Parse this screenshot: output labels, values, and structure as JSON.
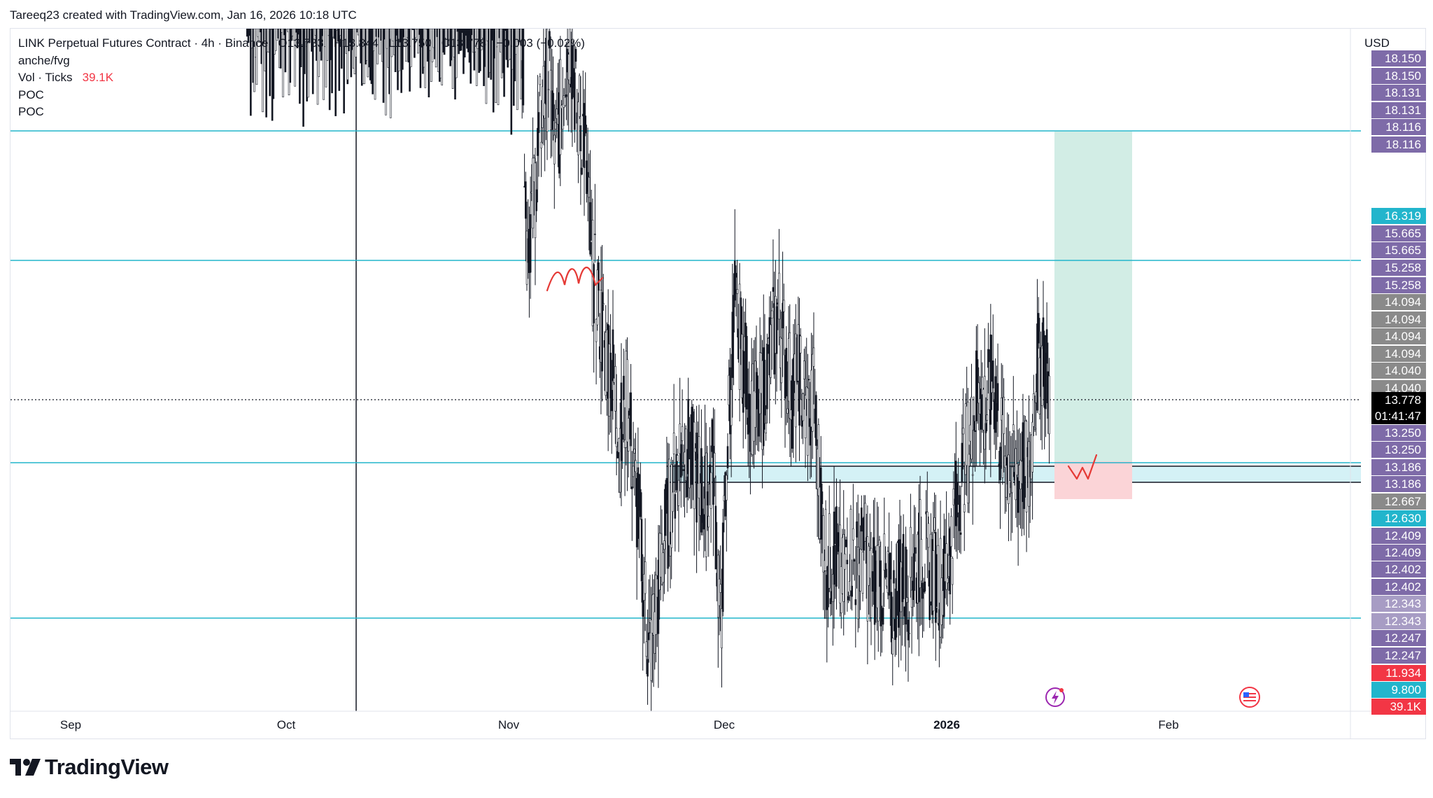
{
  "watermark": "Tareeq23 created with TradingView.com, Jan 16, 2026 10:18 UTC",
  "legend": {
    "symbol": "LINK Perpetual Futures Contract · 4h · Binance",
    "open": "O13.783",
    "high": "H13.844",
    "low": "L13.750",
    "close": "C13.778",
    "change": "−0.003 (−0.02%)",
    "indicator_1": "anche/fvg",
    "volume_label": "Vol · Ticks",
    "volume_value": "39.1K",
    "poc_1": "POC",
    "poc_2": "POC"
  },
  "axis": {
    "currency": "USD"
  },
  "countdown": {
    "price": "13.778",
    "time": "01:41:47"
  },
  "price_labels": [
    {
      "text": "18.150",
      "value": 18.15,
      "color": "#7e6ba8"
    },
    {
      "text": "18.150",
      "value": 18.15,
      "color": "#7e6ba8"
    },
    {
      "text": "18.131",
      "value": 18.131,
      "color": "#7e6ba8"
    },
    {
      "text": "18.131",
      "value": 18.131,
      "color": "#7e6ba8"
    },
    {
      "text": "18.116",
      "value": 18.116,
      "color": "#7e6ba8"
    },
    {
      "text": "18.116",
      "value": 18.116,
      "color": "#7e6ba8"
    },
    {
      "text": "16.319",
      "value": 16.319,
      "color": "#22b5cc"
    },
    {
      "text": "15.665",
      "value": 15.665,
      "color": "#7e6ba8"
    },
    {
      "text": "15.665",
      "value": 15.665,
      "color": "#7e6ba8"
    },
    {
      "text": "15.258",
      "value": 15.258,
      "color": "#7e6ba8"
    },
    {
      "text": "15.258",
      "value": 15.258,
      "color": "#7e6ba8"
    },
    {
      "text": "14.094",
      "value": 14.094,
      "color": "#8a8a8a"
    },
    {
      "text": "14.094",
      "value": 14.094,
      "color": "#8a8a8a"
    },
    {
      "text": "14.094",
      "value": 14.094,
      "color": "#8a8a8a"
    },
    {
      "text": "14.094",
      "value": 14.094,
      "color": "#8a8a8a"
    },
    {
      "text": "14.040",
      "value": 14.04,
      "color": "#8a8a8a"
    },
    {
      "text": "14.040",
      "value": 14.04,
      "color": "#8a8a8a"
    },
    {
      "text": "13.250",
      "value": 13.25,
      "color": "#7e6ba8"
    },
    {
      "text": "13.250",
      "value": 13.25,
      "color": "#7e6ba8"
    },
    {
      "text": "13.186",
      "value": 13.186,
      "color": "#7e6ba8"
    },
    {
      "text": "13.186",
      "value": 13.186,
      "color": "#7e6ba8"
    },
    {
      "text": "12.667",
      "value": 12.667,
      "color": "#8a8a8a"
    },
    {
      "text": "12.630",
      "value": 12.63,
      "color": "#22b5cc"
    },
    {
      "text": "12.409",
      "value": 12.409,
      "color": "#7e6ba8"
    },
    {
      "text": "12.409",
      "value": 12.409,
      "color": "#7e6ba8"
    },
    {
      "text": "12.402",
      "value": 12.402,
      "color": "#7e6ba8"
    },
    {
      "text": "12.402",
      "value": 12.402,
      "color": "#7e6ba8"
    },
    {
      "text": "12.343",
      "value": 12.343,
      "color": "#a79cc4"
    },
    {
      "text": "12.343",
      "value": 12.343,
      "color": "#a79cc4"
    },
    {
      "text": "12.247",
      "value": 12.247,
      "color": "#7e6ba8"
    },
    {
      "text": "12.247",
      "value": 12.247,
      "color": "#7e6ba8"
    },
    {
      "text": "11.934",
      "value": 11.934,
      "color": "#f23645"
    },
    {
      "text": "9.800",
      "value": 9.8,
      "color": "#22b5cc"
    },
    {
      "text": "39.1K",
      "value": null,
      "color": "#f23645"
    }
  ],
  "time_axis": [
    "Sep",
    "Oct",
    "Nov",
    "Dec",
    "2026",
    "Feb"
  ],
  "brand": "TradingView",
  "colors": {
    "hline": "#22b5cc",
    "fvg_zone": "#d4f1f6",
    "target_zone": "#d2ede5",
    "stop_zone": "#fbd4d7",
    "annotation": "#e53935",
    "candle": "#131722"
  },
  "chart_data": {
    "type": "candlestick",
    "symbol": "LINK Perpetual Futures Contract",
    "timeframe": "4h",
    "exchange": "Binance",
    "x_ticks": [
      "Sep",
      "Oct",
      "Nov",
      "Dec",
      "2026",
      "Feb"
    ],
    "last": {
      "open": 13.783,
      "high": 13.844,
      "low": 13.75,
      "close": 13.778,
      "change": -0.003,
      "change_pct": -0.02
    },
    "horizontal_levels": [
      18.15,
      16.32,
      13.25,
      11.93
    ],
    "fvg_zone": {
      "from": 12.667,
      "to": 13.186
    },
    "long_position": {
      "entry": 13.25,
      "target": 18.15,
      "stop": 12.63
    },
    "price_path": [
      [
        "2025-09-26",
        19.7
      ],
      [
        "2025-10-10",
        19.6
      ],
      [
        "2025-10-10",
        16.2
      ],
      [
        "2025-10-11",
        17.6
      ],
      [
        "2025-10-12",
        18.4
      ],
      [
        "2025-10-13",
        19.6
      ],
      [
        "2025-10-14",
        18.4
      ],
      [
        "2025-10-15",
        17.5
      ],
      [
        "2025-10-16",
        17.2
      ],
      [
        "2025-10-17",
        15.6
      ],
      [
        "2025-10-18",
        16.4
      ],
      [
        "2025-10-19",
        16.7
      ],
      [
        "2025-10-20",
        17.8
      ],
      [
        "2025-10-21",
        17.3
      ],
      [
        "2025-10-22",
        17.8
      ],
      [
        "2025-10-23",
        17.0
      ],
      [
        "2025-10-24",
        17.6
      ],
      [
        "2025-10-25",
        17.4
      ],
      [
        "2025-10-26",
        17.9
      ],
      [
        "2025-10-27",
        18.2
      ],
      [
        "2025-10-28",
        17.6
      ],
      [
        "2025-10-29",
        17.9
      ],
      [
        "2025-10-30",
        16.8
      ],
      [
        "2025-10-31",
        16.6
      ],
      [
        "2025-11-01",
        16.9
      ],
      [
        "2025-11-02",
        16.5
      ],
      [
        "2025-11-03",
        16.0
      ],
      [
        "2025-11-04",
        14.5
      ],
      [
        "2025-11-05",
        14.7
      ],
      [
        "2025-11-06",
        15.1
      ],
      [
        "2025-11-07",
        15.3
      ],
      [
        "2025-11-08",
        14.9
      ],
      [
        "2025-11-09",
        15.2
      ],
      [
        "2025-11-10",
        15.5
      ],
      [
        "2025-11-11",
        15.1
      ],
      [
        "2025-11-12",
        15.0
      ],
      [
        "2025-11-13",
        14.4
      ],
      [
        "2025-11-14",
        14.2
      ],
      [
        "2025-11-15",
        14.0
      ],
      [
        "2025-11-16",
        13.9
      ],
      [
        "2025-11-17",
        13.6
      ],
      [
        "2025-11-18",
        13.8
      ],
      [
        "2025-11-19",
        13.4
      ],
      [
        "2025-11-20",
        13.1
      ],
      [
        "2025-11-21",
        12.6
      ],
      [
        "2025-11-22",
        12.8
      ],
      [
        "2025-11-23",
        13.1
      ],
      [
        "2025-11-24",
        13.3
      ],
      [
        "2025-11-25",
        13.5
      ],
      [
        "2025-11-26",
        13.6
      ],
      [
        "2025-11-27",
        13.5
      ],
      [
        "2025-11-28",
        13.4
      ],
      [
        "2025-11-29",
        13.3
      ],
      [
        "2025-11-30",
        13.5
      ],
      [
        "2025-12-01",
        12.7
      ],
      [
        "2025-12-02",
        13.6
      ],
      [
        "2025-12-03",
        14.2
      ],
      [
        "2025-12-04",
        14.0
      ],
      [
        "2025-12-05",
        13.8
      ],
      [
        "2025-12-06",
        13.7
      ],
      [
        "2025-12-07",
        13.8
      ],
      [
        "2025-12-08",
        14.0
      ],
      [
        "2025-12-09",
        14.2
      ],
      [
        "2025-12-10",
        14.0
      ],
      [
        "2025-12-11",
        13.8
      ],
      [
        "2025-12-12",
        13.9
      ],
      [
        "2025-12-13",
        13.7
      ],
      [
        "2025-12-14",
        13.8
      ],
      [
        "2025-12-15",
        13.3
      ],
      [
        "2025-12-16",
        13.0
      ],
      [
        "2025-12-17",
        13.1
      ],
      [
        "2025-12-18",
        12.9
      ],
      [
        "2025-12-19",
        13.1
      ],
      [
        "2025-12-20",
        13.0
      ],
      [
        "2025-12-21",
        13.1
      ],
      [
        "2025-12-22",
        12.9
      ],
      [
        "2025-12-23",
        13.0
      ],
      [
        "2025-12-24",
        12.9
      ],
      [
        "2025-12-25",
        12.8
      ],
      [
        "2025-12-26",
        13.0
      ],
      [
        "2025-12-27",
        12.9
      ],
      [
        "2025-12-28",
        13.0
      ],
      [
        "2025-12-29",
        13.1
      ],
      [
        "2025-12-30",
        13.0
      ],
      [
        "2025-12-31",
        13.0
      ],
      [
        "2026-01-01",
        12.9
      ],
      [
        "2026-01-02",
        13.1
      ],
      [
        "2026-01-03",
        13.3
      ],
      [
        "2026-01-04",
        13.5
      ],
      [
        "2026-01-05",
        13.6
      ],
      [
        "2026-01-06",
        13.9
      ],
      [
        "2026-01-07",
        13.7
      ],
      [
        "2026-01-08",
        13.9
      ],
      [
        "2026-01-09",
        13.6
      ],
      [
        "2026-01-10",
        13.5
      ],
      [
        "2026-01-11",
        13.4
      ],
      [
        "2026-01-12",
        13.5
      ],
      [
        "2026-01-13",
        13.4
      ],
      [
        "2026-01-14",
        13.9
      ],
      [
        "2026-01-15",
        14.0
      ],
      [
        "2026-01-16",
        13.78
      ]
    ],
    "annotations": [
      {
        "kind": "freehand",
        "shape": "M",
        "near": "2025-11-10"
      },
      {
        "kind": "freehand",
        "shape": "W",
        "near": "2026-01-18"
      }
    ]
  }
}
